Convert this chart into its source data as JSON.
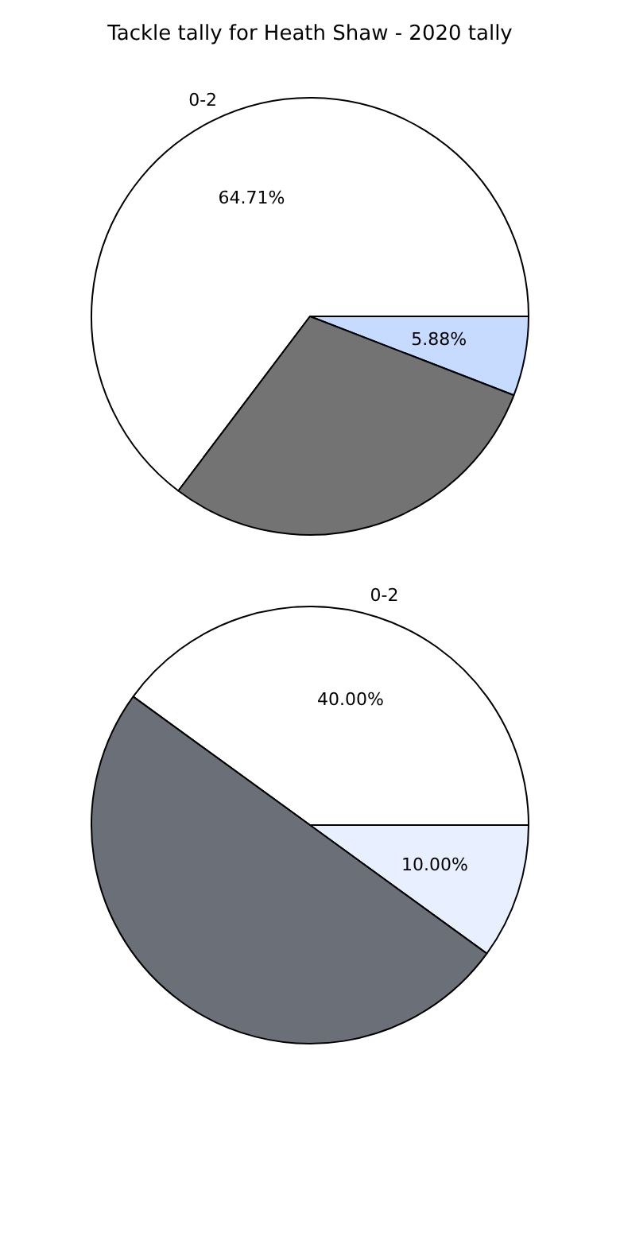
{
  "chart_data": [
    {
      "type": "pie",
      "title": "Tackle tally for Heath Shaw - 2020 tally",
      "categories": [
        "0-2",
        null,
        null
      ],
      "values": [
        64.71,
        5.88,
        29.41
      ],
      "value_labels": [
        "64.71%",
        "5.88%",
        null
      ],
      "colors": [
        "#ffffff",
        "#c6dbff",
        "#737373"
      ],
      "legend": false
    },
    {
      "type": "pie",
      "categories": [
        "0-2",
        null,
        null
      ],
      "values": [
        40,
        10,
        50
      ],
      "value_labels": [
        "40.00%",
        "10.00%",
        null
      ],
      "colors": [
        "#ffffff",
        "#e8f0ff",
        "#6b6f78"
      ],
      "legend": false
    }
  ]
}
